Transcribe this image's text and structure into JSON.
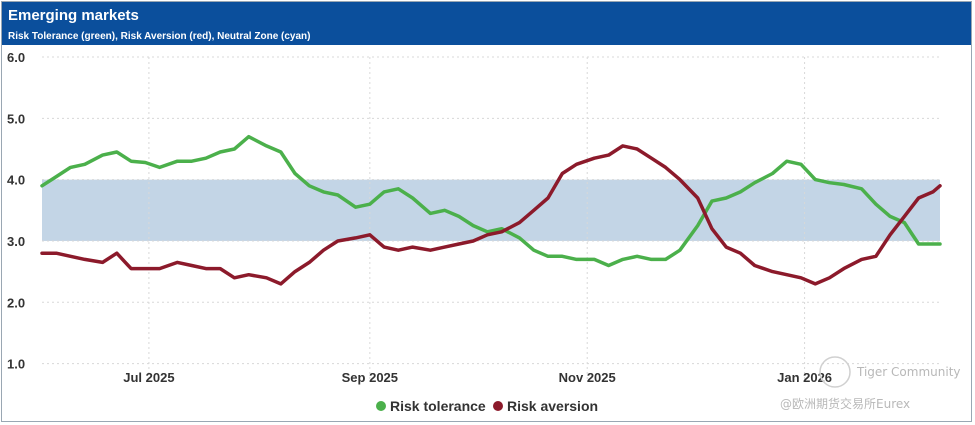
{
  "header": {
    "title": "Emerging markets",
    "subtitle": "Risk Tolerance (green), Risk Aversion (red), Neutral Zone (cyan)"
  },
  "colors": {
    "header_bg": "#0b4f9c",
    "risk_tolerance": "#4bb04b",
    "risk_aversion": "#8c1a2b",
    "neutral_zone": "#c3d5e6",
    "grid": "#d8d8d8"
  },
  "watermark": {
    "line1": "Tiger Community",
    "line2": "@欧洲期货交易所Eurex"
  },
  "chart_data": {
    "type": "line",
    "title": "Emerging markets",
    "subtitle": "Risk Tolerance (green), Risk Aversion (red), Neutral Zone (cyan)",
    "x_tick_labels": [
      "Jul 2025",
      "Sep 2025",
      "Nov 2025",
      "Jan 2026"
    ],
    "x_tick_days": [
      30,
      92,
      153,
      214
    ],
    "x_range_days": [
      0,
      252
    ],
    "y_ticks": [
      1.0,
      2.0,
      3.0,
      4.0,
      5.0,
      6.0
    ],
    "y_tick_labels": [
      "1.0",
      "2.0",
      "3.0",
      "4.0",
      "5.0",
      "6.0"
    ],
    "ylim": [
      0.7,
      6.0
    ],
    "grid": "dotted",
    "neutral_zone": {
      "from": 3.0,
      "to": 4.0
    },
    "legend_position": "bottom-center",
    "series": [
      {
        "name": "Risk tolerance",
        "color": "#4bb04b",
        "x": [
          0,
          4,
          8,
          12,
          17,
          21,
          25,
          29,
          33,
          38,
          42,
          46,
          50,
          54,
          58,
          63,
          67,
          71,
          75,
          79,
          83,
          88,
          92,
          96,
          100,
          104,
          109,
          113,
          117,
          121,
          125,
          129,
          134,
          138,
          142,
          146,
          150,
          155,
          159,
          163,
          167,
          171,
          175,
          179,
          184,
          188,
          192,
          196,
          200,
          205,
          209,
          213,
          217,
          221,
          225,
          230,
          234,
          238,
          242,
          246,
          250,
          252
        ],
        "values": [
          3.9,
          4.05,
          4.2,
          4.25,
          4.4,
          4.45,
          4.3,
          4.28,
          4.2,
          4.3,
          4.3,
          4.35,
          4.45,
          4.5,
          4.7,
          4.55,
          4.45,
          4.1,
          3.9,
          3.8,
          3.75,
          3.55,
          3.6,
          3.8,
          3.85,
          3.7,
          3.45,
          3.5,
          3.4,
          3.25,
          3.15,
          3.2,
          3.05,
          2.85,
          2.75,
          2.75,
          2.7,
          2.7,
          2.6,
          2.7,
          2.75,
          2.7,
          2.7,
          2.85,
          3.25,
          3.65,
          3.7,
          3.8,
          3.95,
          4.1,
          4.3,
          4.25,
          4.0,
          3.95,
          3.92,
          3.85,
          3.6,
          3.4,
          3.3,
          2.95,
          2.95,
          2.95
        ]
      },
      {
        "name": "Risk aversion",
        "color": "#8c1a2b",
        "x": [
          0,
          4,
          8,
          12,
          17,
          21,
          25,
          29,
          33,
          38,
          42,
          46,
          50,
          54,
          58,
          63,
          67,
          71,
          75,
          79,
          83,
          88,
          92,
          96,
          100,
          104,
          109,
          113,
          117,
          121,
          125,
          129,
          134,
          138,
          142,
          146,
          150,
          155,
          159,
          163,
          167,
          171,
          175,
          179,
          184,
          188,
          192,
          196,
          200,
          205,
          209,
          213,
          217,
          221,
          225,
          230,
          234,
          238,
          242,
          246,
          250,
          252
        ],
        "values": [
          2.8,
          2.8,
          2.75,
          2.7,
          2.65,
          2.8,
          2.55,
          2.55,
          2.55,
          2.65,
          2.6,
          2.55,
          2.55,
          2.4,
          2.45,
          2.4,
          2.3,
          2.5,
          2.65,
          2.85,
          3.0,
          3.05,
          3.1,
          2.9,
          2.85,
          2.9,
          2.85,
          2.9,
          2.95,
          3.0,
          3.1,
          3.15,
          3.3,
          3.5,
          3.7,
          4.1,
          4.25,
          4.35,
          4.4,
          4.55,
          4.5,
          4.35,
          4.2,
          4.0,
          3.7,
          3.2,
          2.9,
          2.8,
          2.6,
          2.5,
          2.45,
          2.4,
          2.3,
          2.4,
          2.55,
          2.7,
          2.75,
          3.1,
          3.4,
          3.7,
          3.8,
          3.9
        ]
      }
    ]
  }
}
